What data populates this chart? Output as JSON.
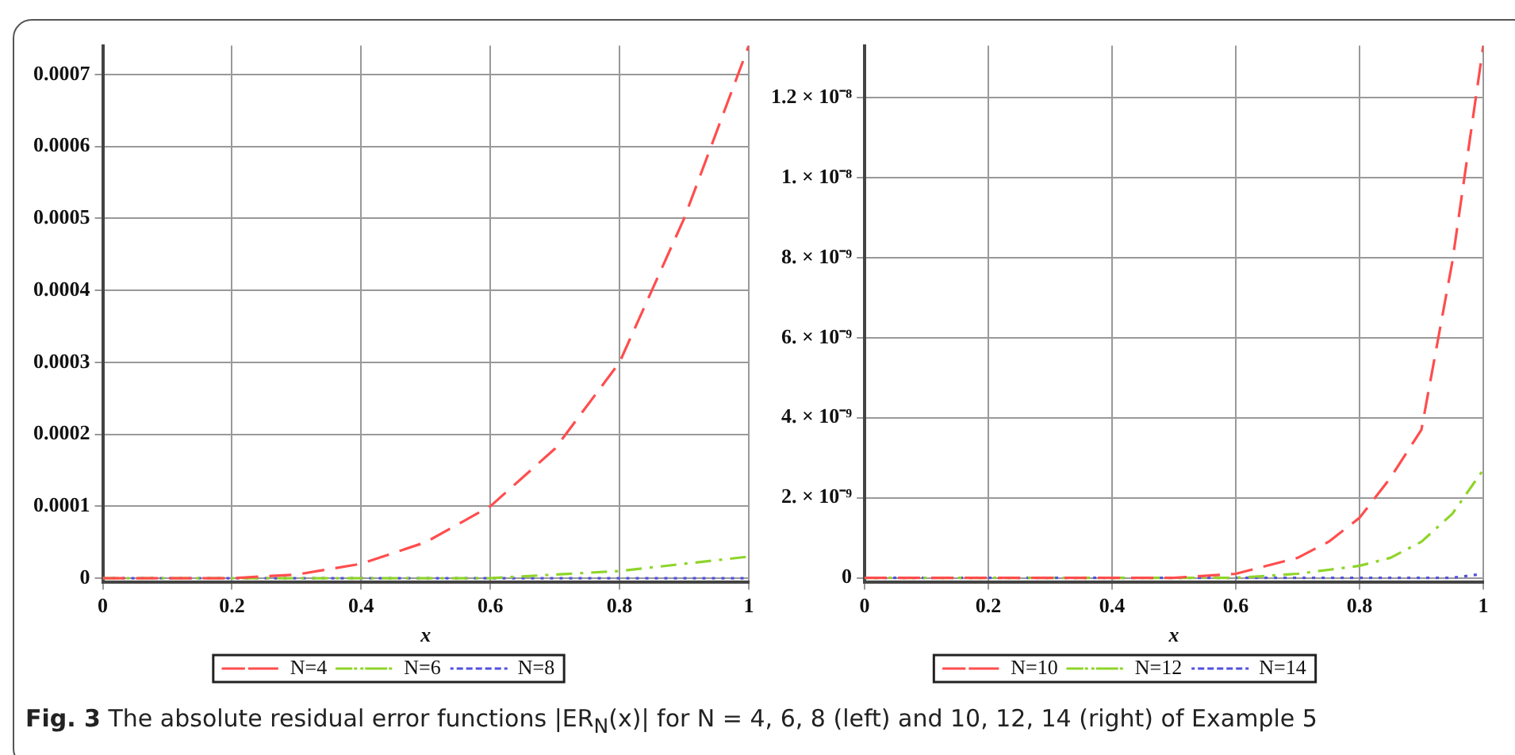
{
  "chart_data": [
    {
      "type": "line",
      "xlabel": "x",
      "xlim": [
        0,
        1
      ],
      "xticks": [
        0,
        0.2,
        0.4,
        0.6,
        0.8,
        1
      ],
      "ylim": [
        -5e-06,
        0.00074
      ],
      "yticks": [
        0,
        0.0001,
        0.0002,
        0.0003,
        0.0004,
        0.0005,
        0.0006,
        0.0007
      ],
      "grid": true,
      "legend": "bottom",
      "marker": "none",
      "x": [
        0,
        0.1,
        0.2,
        0.3,
        0.4,
        0.5,
        0.6,
        0.7,
        0.8,
        0.85,
        0.9,
        0.95,
        1
      ],
      "series": [
        {
          "name": "N=4",
          "color": "#ff4d4d",
          "line_style": "dashed",
          "values": [
            0,
            0,
            0,
            5e-06,
            2e-05,
            5e-05,
            0.0001,
            0.00018,
            0.0003,
            0.0004,
            0.0005,
            0.00062,
            0.00074
          ]
        },
        {
          "name": "N=6",
          "color": "#8fd42a",
          "line_style": "dashdot",
          "values": [
            0,
            0,
            0,
            0,
            0,
            0,
            0,
            5e-06,
            1e-05,
            1.5e-05,
            2e-05,
            2.5e-05,
            3e-05
          ]
        },
        {
          "name": "N=8",
          "color": "#5050e0",
          "line_style": "dotted",
          "values": [
            0,
            0,
            0,
            0,
            0,
            0,
            0,
            0,
            0,
            0,
            0,
            0,
            0
          ]
        }
      ],
      "annotations": [
        "**Fig. 3** The absolute residual error functions |ER$_{N}$(x)| for N = 4, 6, 8 (left) and 10, 12, 14 (right) of Example 5"
      ]
    },
    {
      "type": "line",
      "xlabel": "x",
      "xlim": [
        0,
        1
      ],
      "xticks": [
        0,
        0.2,
        0.4,
        0.6,
        0.8,
        1
      ],
      "ylim": [
        -1e-10,
        1.33e-08
      ],
      "yticks": [
        0,
        {
          "value": 2e-09,
          "label": "2. × 10⁻⁹"
        },
        {
          "value": 4e-09,
          "label": "4. × 10⁻⁹"
        },
        {
          "value": 6e-09,
          "label": "6. × 10⁻⁹"
        },
        {
          "value": 8e-09,
          "label": "8. × 10⁻⁹"
        },
        {
          "value": 1e-08,
          "label": "1. × 10⁻⁸"
        },
        {
          "value": 1.2e-08,
          "label": "1.2 × 10⁻⁸"
        }
      ],
      "grid": true,
      "legend": "bottom",
      "marker": "none",
      "x": [
        0,
        0.1,
        0.2,
        0.3,
        0.4,
        0.5,
        0.6,
        0.7,
        0.75,
        0.8,
        0.85,
        0.9,
        0.95,
        1
      ],
      "series": [
        {
          "name": "N=10",
          "color": "#ff4d4d",
          "line_style": "dashed",
          "values": [
            0,
            0,
            0,
            0,
            0,
            0,
            1e-10,
            5e-10,
            9e-10,
            1.5e-09,
            2.5e-09,
            3.7e-09,
            7.9e-09,
            1.33e-08
          ]
        },
        {
          "name": "N=12",
          "color": "#8fd42a",
          "line_style": "dashdot",
          "values": [
            0,
            0,
            0,
            0,
            0,
            0,
            0,
            1e-10,
            2e-10,
            3e-10,
            5e-10,
            9e-10,
            1.6e-09,
            2.7e-09
          ]
        },
        {
          "name": "N=14",
          "color": "#5050e0",
          "line_style": "dotted",
          "values": [
            0,
            0,
            0,
            0,
            0,
            0,
            0,
            0,
            0,
            0,
            0,
            0,
            0,
            1e-10
          ]
        }
      ]
    }
  ]
}
